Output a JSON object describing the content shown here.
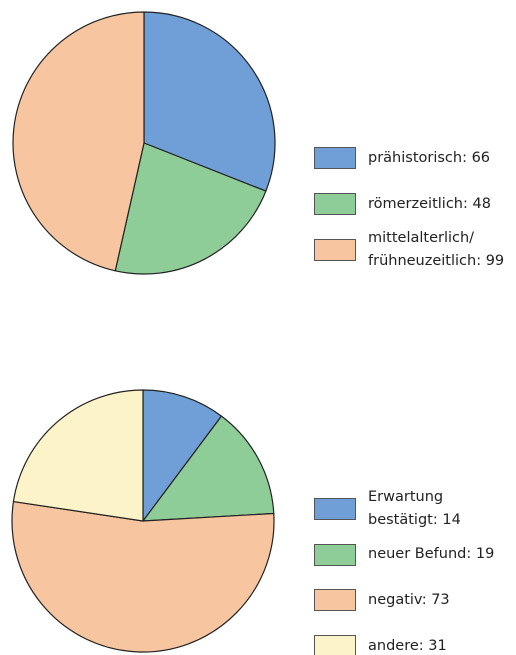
{
  "chart_data": [
    {
      "type": "pie",
      "values": [
        66,
        48,
        99
      ],
      "value_labels": [
        "prähistorisch: 66",
        "römerzeitlich: 48",
        "mittelalterlich/\nfrühneuzeitlich: 99"
      ],
      "colors": [
        "#6f9fd6",
        "#8fcd98",
        "#f7c6a0"
      ]
    },
    {
      "type": "pie",
      "values": [
        14,
        19,
        73,
        31
      ],
      "value_labels": [
        "Erwartung\nbestätigt: 14",
        "neuer Befund: 19",
        "negativ: 73",
        "andere: 31"
      ],
      "colors": [
        "#6f9fd6",
        "#8fcd98",
        "#f7c6a0",
        "#fdf3c9"
      ]
    }
  ]
}
